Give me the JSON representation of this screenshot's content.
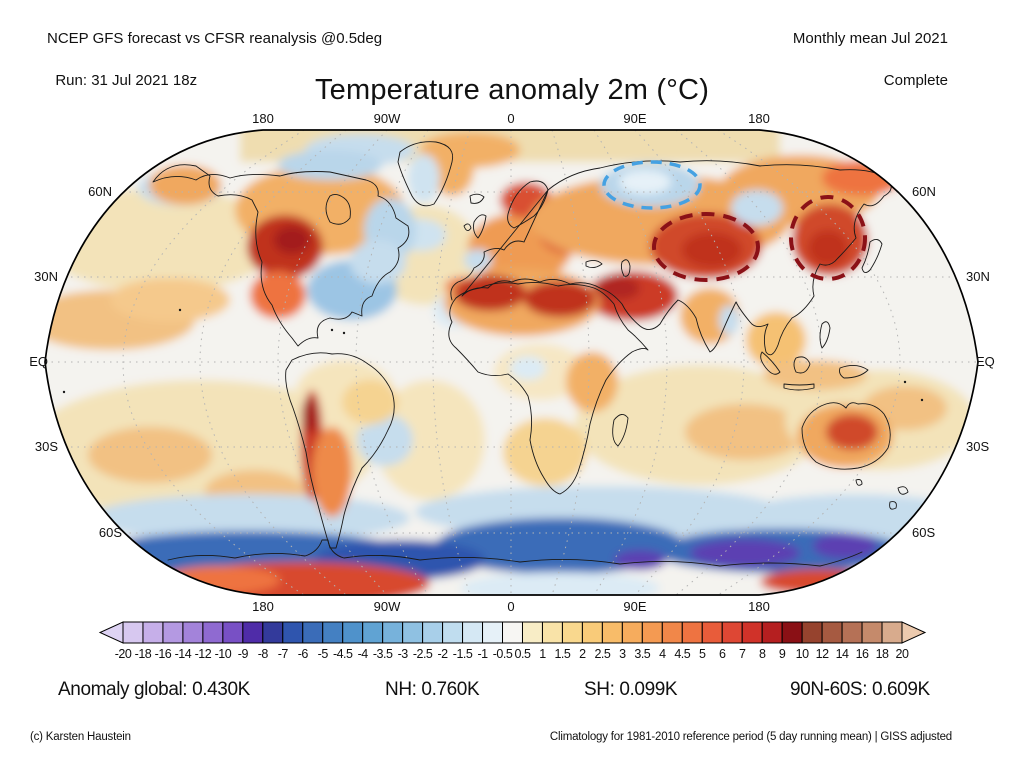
{
  "header": {
    "left_line1": "NCEP GFS forecast vs CFSR reanalysis @0.5deg",
    "left_line2": "Run: 31 Jul 2021 18z",
    "right_line1": "Monthly mean Jul 2021",
    "right_line2": "Complete"
  },
  "title": "Temperature anomaly 2m (°C)",
  "map": {
    "top_labels": [
      "180",
      "90W",
      "0",
      "90E",
      "180"
    ],
    "bottom_labels": [
      "180",
      "90W",
      "0",
      "90E",
      "180"
    ],
    "left_labels": [
      "60N",
      "30N",
      "EQ",
      "30S",
      "60S"
    ],
    "right_labels": [
      "60N",
      "30N",
      "EQ",
      "30S",
      "60S"
    ],
    "annotation_colors": {
      "cold_highlight": "#45a1e2",
      "warm_highlight": "#8b1117"
    }
  },
  "colorbar": {
    "labels": [
      "-20",
      "-18",
      "-16",
      "-14",
      "-12",
      "-10",
      "-9",
      "-8",
      "-7",
      "-6",
      "-5",
      "-4.5",
      "-4",
      "-3.5",
      "-3",
      "-2.5",
      "-2",
      "-1.5",
      "-1",
      "-0.5",
      "0.5",
      "1",
      "1.5",
      "2",
      "2.5",
      "3",
      "3.5",
      "4",
      "4.5",
      "5",
      "6",
      "7",
      "8",
      "9",
      "10",
      "12",
      "14",
      "16",
      "18",
      "20"
    ],
    "cell_colors": [
      "#d7c8f0",
      "#c6afe9",
      "#b499e2",
      "#a383da",
      "#8f6ad1",
      "#7850c5",
      "#4f2ca8",
      "#333a9b",
      "#2f55ae",
      "#3a6cb8",
      "#4480c2",
      "#4f92cb",
      "#60a3d3",
      "#77b2db",
      "#8fc1e2",
      "#a8cfe9",
      "#c0ddef",
      "#d5e8f4",
      "#e6f1f8",
      "#f7f6f3",
      "#f8edc6",
      "#f9e3a8",
      "#f9d88e",
      "#f9cb79",
      "#f8bc69",
      "#f6ac5d",
      "#f49a52",
      "#f18749",
      "#ee7341",
      "#e85c3a",
      "#de4734",
      "#d03229",
      "#b51f20",
      "#8a1015",
      "#96432e",
      "#a65a41",
      "#b57156",
      "#c58a6b",
      "#d8ab8d"
    ],
    "arrow_left_color": "#ded3f4",
    "arrow_right_color": "#eccaae"
  },
  "stats": {
    "global": "Anomaly global: 0.430K",
    "nh": "NH: 0.760K",
    "sh": "SH: 0.099K",
    "band": "90N-60S: 0.609K"
  },
  "footer": {
    "left": "(c) Karsten Haustein",
    "right": "Climatology for 1981-2010 reference period (5 day running mean) | GISS adjusted"
  },
  "chart_data": {
    "type": "heatmap",
    "title": "Temperature anomaly 2m (°C)",
    "units": "°C",
    "projection": "Robinson world map",
    "source_line": "NCEP GFS forecast vs CFSR reanalysis @0.5deg",
    "run": "Run: 31 Jul 2021 18z",
    "period": "Monthly mean Jul 2021",
    "status": "Complete",
    "colorbar_boundaries": [
      -20,
      -18,
      -16,
      -14,
      -12,
      -10,
      -9,
      -8,
      -7,
      -6,
      -5,
      -4.5,
      -4,
      -3.5,
      -3,
      -2.5,
      -2,
      -1.5,
      -1,
      -0.5,
      0.5,
      1,
      1.5,
      2,
      2.5,
      3,
      3.5,
      4,
      4.5,
      5,
      6,
      7,
      8,
      9,
      10,
      12,
      14,
      16,
      18,
      20
    ],
    "x_tick_labels": [
      "180",
      "90W",
      "0",
      "90E",
      "180"
    ],
    "y_tick_labels": [
      "60N",
      "30N",
      "EQ",
      "30S",
      "60S"
    ],
    "summary_stats_K": {
      "global": 0.43,
      "NH": 0.76,
      "SH": 0.099,
      "90N-60S": 0.609
    },
    "highlighted_regions": [
      {
        "style": "blue dashed ellipse",
        "location": "western Siberia",
        "anomaly": "cold"
      },
      {
        "style": "dark red dashed ellipse",
        "location": "Mongolia / Central Asia",
        "anomaly": "warm"
      },
      {
        "style": "dark red dashed ellipse",
        "location": "NE China / Korea / Sea of Japan",
        "anomaly": "warm"
      }
    ],
    "climatology_note": "Climatology for 1981-2010 reference period (5 day running mean) | GISS adjusted",
    "credit": "(c) Karsten Haustein"
  }
}
